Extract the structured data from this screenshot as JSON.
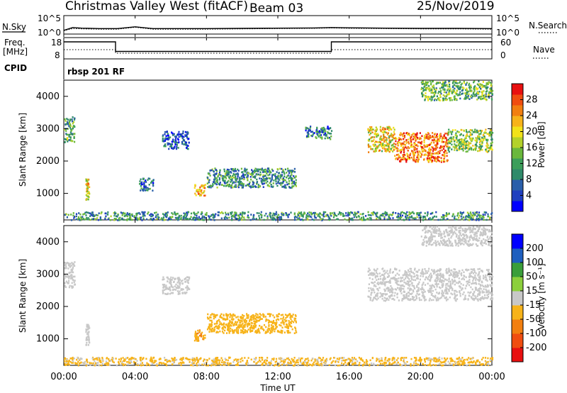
{
  "header": {
    "title": "Christmas Valley West (fitACF)",
    "beam": "Beam 03",
    "date": "25/Nov/2019"
  },
  "status_panels": {
    "nsky_label": "N.Sky",
    "nsky_ticks": [
      "10^5",
      "10^0"
    ],
    "nsearch_label": "N.Search",
    "nsearch_ticks": [
      "10^5",
      "10^0"
    ],
    "freq_label_1": "Freq.",
    "freq_label_2": "[MHz]",
    "freq_ticks": [
      "18",
      "8"
    ],
    "nave_label": "Nave",
    "nave_ticks": [
      "60",
      "0"
    ],
    "cpid_label": "CPID",
    "cpid_value": "rbsp 201 RF"
  },
  "chart_data": [
    {
      "type": "line",
      "panel": "noise",
      "series": [
        {
          "name": "N.Sky",
          "x": [
            0,
            0.5,
            1,
            2,
            3,
            4,
            5,
            6,
            8,
            10,
            12,
            14,
            15,
            16,
            18,
            20,
            22,
            24
          ],
          "y": [
            10,
            60,
            40,
            30,
            30,
            90,
            30,
            30,
            30,
            35,
            40,
            45,
            60,
            50,
            40,
            35,
            35,
            30
          ]
        },
        {
          "name": "N.Search",
          "x": [
            0,
            0.5,
            1,
            2,
            3,
            4,
            5,
            6,
            8,
            10,
            12,
            14,
            15,
            16,
            18,
            20,
            22,
            24
          ],
          "y": [
            8,
            30,
            25,
            20,
            20,
            70,
            20,
            20,
            20,
            25,
            30,
            35,
            45,
            35,
            30,
            25,
            25,
            20
          ]
        }
      ],
      "ylim_log": [
        0,
        5
      ]
    },
    {
      "type": "line",
      "panel": "frequency",
      "series": [
        {
          "name": "Freq.",
          "x": [
            0,
            2.9,
            2.9,
            15,
            15,
            24
          ],
          "y": [
            16,
            16,
            11.5,
            11.5,
            16,
            16
          ]
        },
        {
          "name": "Nave",
          "x": [
            0,
            2.9,
            2.9,
            15,
            15,
            24
          ],
          "y": [
            26,
            26,
            16,
            16,
            26,
            26
          ]
        }
      ],
      "ylim": [
        8,
        18
      ],
      "y2lim": [
        0,
        60
      ]
    },
    {
      "type": "heatmap",
      "panel": "power",
      "ylabel": "Slant Range [km]",
      "yticks": [
        "4000",
        "3000",
        "2000",
        "1000"
      ],
      "ylim": [
        180,
        4500
      ],
      "xlim": [
        0,
        24
      ],
      "colorbar": {
        "label": "Power [dB]",
        "ticks": [
          "28",
          "24",
          "20",
          "16",
          "12",
          "8",
          "4"
        ],
        "range": [
          0,
          32
        ],
        "colors": [
          "#0000ff",
          "#1f3fbf",
          "#2a5faa",
          "#2f8a6a",
          "#3c9e5a",
          "#6ab83c",
          "#b3d12a",
          "#f2e21a",
          "#f7b31a",
          "#f27f10",
          "#f04d10",
          "#e81010"
        ]
      },
      "regions": [
        {
          "t": [
            0.0,
            0.6
          ],
          "r": [
            2600,
            3400
          ],
          "v": 12
        },
        {
          "t": [
            1.2,
            1.4
          ],
          "r": [
            800,
            1500
          ],
          "v": 20
        },
        {
          "t": [
            4.2,
            5.0
          ],
          "r": [
            1100,
            1500
          ],
          "v": 8
        },
        {
          "t": [
            5.5,
            7.0
          ],
          "r": [
            2400,
            2950
          ],
          "v": 6
        },
        {
          "t": [
            7.3,
            7.9
          ],
          "r": [
            950,
            1300
          ],
          "v": 22
        },
        {
          "t": [
            8.0,
            13.0
          ],
          "r": [
            1200,
            1800
          ],
          "v": 10
        },
        {
          "t": [
            13.5,
            15.0
          ],
          "r": [
            2700,
            3100
          ],
          "v": 8
        },
        {
          "t": [
            17.0,
            18.5
          ],
          "r": [
            2300,
            3100
          ],
          "v": 20
        },
        {
          "t": [
            18.5,
            21.5
          ],
          "r": [
            2000,
            2900
          ],
          "v": 26
        },
        {
          "t": [
            21.5,
            24.0
          ],
          "r": [
            2300,
            3000
          ],
          "v": 16
        },
        {
          "t": [
            20.0,
            24.0
          ],
          "r": [
            3900,
            4500
          ],
          "v": 14
        },
        {
          "t": [
            0.0,
            24.0
          ],
          "r": [
            200,
            450
          ],
          "v": 10
        }
      ]
    },
    {
      "type": "heatmap",
      "panel": "velocity",
      "ylabel": "Slant Range [km]",
      "yticks": [
        "4000",
        "3000",
        "2000",
        "1000"
      ],
      "ylim": [
        180,
        4500
      ],
      "xlim": [
        0,
        24
      ],
      "xticks": [
        "00:00",
        "04:00",
        "08:00",
        "12:00",
        "16:00",
        "20:00",
        "00:00"
      ],
      "xlabel": "Time UT",
      "colorbar": {
        "label": "Velocity [m s⁻¹]",
        "ticks": [
          "200",
          "100",
          "50",
          "15",
          "-15",
          "-50",
          "-100",
          "-200"
        ],
        "range": [
          -250,
          250
        ],
        "colors": [
          "#e81010",
          "#f04d10",
          "#f27f10",
          "#f7b31a",
          "#c8c8c8",
          "#8ccf3c",
          "#3a9e3a",
          "#1f5fbf",
          "#0000ff"
        ]
      },
      "regions": [
        {
          "t": [
            0.0,
            0.6
          ],
          "r": [
            2600,
            3400
          ],
          "v": 0
        },
        {
          "t": [
            1.2,
            1.4
          ],
          "r": [
            800,
            1500
          ],
          "v": 0
        },
        {
          "t": [
            5.5,
            7.0
          ],
          "r": [
            2400,
            2950
          ],
          "v": 0
        },
        {
          "t": [
            7.3,
            7.9
          ],
          "r": [
            950,
            1300
          ],
          "v": -80
        },
        {
          "t": [
            8.0,
            13.0
          ],
          "r": [
            1200,
            1800
          ],
          "v": -60
        },
        {
          "t": [
            17.0,
            24.0
          ],
          "r": [
            2200,
            3200
          ],
          "v": 0
        },
        {
          "t": [
            20.0,
            24.0
          ],
          "r": [
            3900,
            4500
          ],
          "v": 5
        },
        {
          "t": [
            0.0,
            24.0
          ],
          "r": [
            200,
            450
          ],
          "v": -40
        }
      ]
    }
  ]
}
